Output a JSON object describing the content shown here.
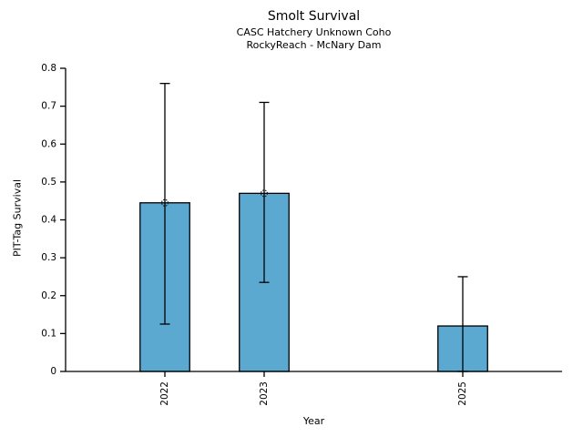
{
  "chart_data": {
    "type": "bar",
    "title": "Smolt Survival",
    "subtitle": [
      "CASC Hatchery Unknown Coho",
      "RockyReach - McNary Dam"
    ],
    "xlabel": "Year",
    "ylabel": "PIT-Tag Survival",
    "categories": [
      "2022",
      "2023",
      "2025"
    ],
    "x": [
      2022,
      2023,
      2025
    ],
    "values": [
      0.445,
      0.47,
      0.12
    ],
    "error_low": [
      0.125,
      0.235,
      0.0
    ],
    "error_high": [
      0.76,
      0.71,
      0.25
    ],
    "point_markers": [
      0.445,
      0.47,
      null
    ],
    "bar_width_years": 0.5,
    "xlim": [
      2021,
      2026
    ],
    "ylim": [
      0,
      0.8
    ],
    "yticks": [
      0,
      0.1,
      0.2,
      0.3,
      0.4,
      0.5,
      0.6,
      0.7,
      0.8
    ],
    "ytick_labels": [
      "0",
      "0.1",
      "0.2",
      "0.3",
      "0.4",
      "0.5",
      "0.6",
      "0.7",
      "0.8"
    ],
    "grid": false,
    "legend": "none",
    "spines": [
      "left",
      "bottom"
    ],
    "bar_color": "#5BA8D1",
    "bar_edge_color": "#000000",
    "error_color": "#000000",
    "marker_style": "open-dashed-circle",
    "background": "#FFFFFF",
    "xtick_label_rotation_deg": 90
  }
}
